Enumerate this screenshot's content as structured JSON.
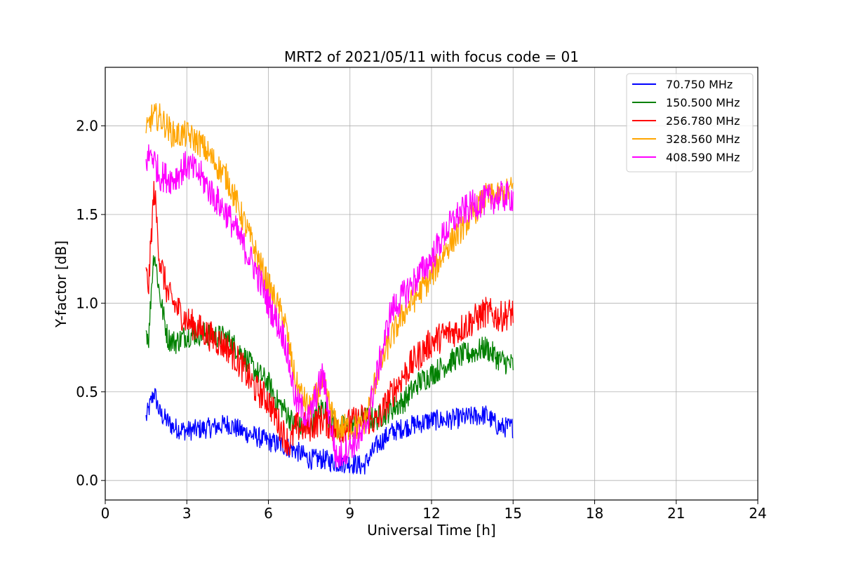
{
  "chart_data": {
    "type": "line",
    "title": "MRT2 of 2021/05/11 with focus code = 01",
    "xlabel": "Universal Time [h]",
    "ylabel": "Y-factor [dB]",
    "xlim": [
      0,
      24
    ],
    "ylim": [
      -0.11,
      2.33
    ],
    "xticks": [
      0,
      3,
      6,
      9,
      12,
      15,
      18,
      21,
      24
    ],
    "xtick_labels": [
      "0",
      "3",
      "6",
      "9",
      "12",
      "15",
      "18",
      "21",
      "24"
    ],
    "yticks": [
      0.0,
      0.5,
      1.0,
      1.5,
      2.0
    ],
    "ytick_labels": [
      "0.0",
      "0.5",
      "1.0",
      "1.5",
      "2.0"
    ],
    "grid": true,
    "legend_position": "top-right",
    "series": [
      {
        "name": " 70.750 MHz",
        "color": "#0000ff",
        "x": [
          1.5,
          1.7,
          1.8,
          2.0,
          2.5,
          3.0,
          3.5,
          4.0,
          4.5,
          5.0,
          5.5,
          6.0,
          6.5,
          7.0,
          7.5,
          8.0,
          8.5,
          9.0,
          9.5,
          10.0,
          10.5,
          11.0,
          11.5,
          12.0,
          12.5,
          13.0,
          13.5,
          14.0,
          14.5,
          15.0
        ],
        "values": [
          0.35,
          0.45,
          0.5,
          0.38,
          0.3,
          0.28,
          0.29,
          0.3,
          0.32,
          0.28,
          0.25,
          0.22,
          0.2,
          0.17,
          0.12,
          0.12,
          0.1,
          0.1,
          0.08,
          0.2,
          0.27,
          0.3,
          0.32,
          0.34,
          0.34,
          0.35,
          0.36,
          0.37,
          0.3,
          0.3
        ],
        "noise": 0.06
      },
      {
        "name": "150.500 MHz",
        "color": "#008000",
        "x": [
          1.5,
          1.6,
          1.7,
          1.8,
          2.0,
          2.3,
          2.6,
          3.0,
          3.5,
          4.0,
          4.5,
          5.0,
          5.5,
          6.0,
          6.3,
          6.6,
          7.0,
          7.5,
          8.0,
          8.5,
          9.0,
          9.5,
          10.0,
          10.5,
          11.0,
          11.5,
          12.0,
          12.5,
          13.0,
          13.5,
          14.0,
          14.5,
          15.0
        ],
        "values": [
          0.85,
          0.8,
          1.1,
          1.3,
          1.05,
          0.8,
          0.78,
          0.82,
          0.83,
          0.82,
          0.8,
          0.72,
          0.62,
          0.55,
          0.45,
          0.4,
          0.3,
          0.3,
          0.42,
          0.3,
          0.3,
          0.35,
          0.35,
          0.4,
          0.45,
          0.55,
          0.6,
          0.65,
          0.7,
          0.72,
          0.75,
          0.68,
          0.65
        ],
        "noise": 0.07
      },
      {
        "name": "256.780 MHz",
        "color": "#ff0000",
        "x": [
          1.5,
          1.6,
          1.7,
          1.8,
          2.0,
          2.3,
          2.6,
          3.0,
          3.5,
          4.0,
          4.5,
          5.0,
          5.5,
          6.0,
          6.3,
          6.6,
          6.8,
          7.0,
          7.5,
          8.0,
          8.5,
          9.0,
          9.5,
          10.0,
          10.5,
          11.0,
          11.5,
          12.0,
          12.5,
          13.0,
          13.5,
          14.0,
          14.5,
          15.0
        ],
        "values": [
          1.15,
          1.1,
          1.4,
          1.65,
          1.25,
          1.05,
          0.98,
          0.9,
          0.85,
          0.8,
          0.75,
          0.65,
          0.52,
          0.45,
          0.35,
          0.25,
          0.2,
          0.3,
          0.3,
          0.35,
          0.28,
          0.32,
          0.35,
          0.33,
          0.48,
          0.6,
          0.7,
          0.78,
          0.82,
          0.85,
          0.9,
          0.95,
          0.92,
          0.95
        ],
        "noise": 0.09
      },
      {
        "name": "328.560 MHz",
        "color": "#ffa500",
        "x": [
          1.5,
          1.7,
          2.0,
          2.5,
          3.0,
          3.5,
          4.0,
          4.5,
          5.0,
          5.5,
          6.0,
          6.3,
          6.6,
          7.0,
          7.5,
          8.0,
          8.5,
          9.0,
          9.5,
          10.0,
          10.5,
          11.0,
          11.5,
          12.0,
          12.5,
          13.0,
          13.5,
          14.0,
          14.5,
          15.0
        ],
        "values": [
          1.95,
          2.05,
          2.05,
          1.95,
          1.95,
          1.9,
          1.8,
          1.7,
          1.5,
          1.3,
          1.1,
          1.0,
          0.9,
          0.55,
          0.4,
          0.55,
          0.3,
          0.3,
          0.3,
          0.6,
          0.8,
          0.95,
          1.05,
          1.15,
          1.3,
          1.4,
          1.5,
          1.6,
          1.6,
          1.65
        ],
        "noise": 0.08
      },
      {
        "name": "408.590 MHz",
        "color": "#ff00ff",
        "x": [
          1.5,
          1.7,
          2.0,
          2.5,
          3.0,
          3.5,
          4.0,
          4.5,
          5.0,
          5.5,
          6.0,
          6.3,
          6.6,
          7.0,
          7.5,
          8.0,
          8.5,
          9.0,
          9.5,
          10.0,
          10.5,
          11.0,
          11.5,
          12.0,
          12.5,
          13.0,
          13.5,
          14.0,
          14.5,
          15.0
        ],
        "values": [
          1.8,
          1.85,
          1.72,
          1.7,
          1.78,
          1.72,
          1.6,
          1.5,
          1.35,
          1.2,
          1.0,
          0.9,
          0.8,
          0.45,
          0.35,
          0.6,
          0.12,
          0.2,
          0.25,
          0.6,
          0.95,
          1.05,
          1.15,
          1.25,
          1.4,
          1.5,
          1.55,
          1.58,
          1.6,
          1.6
        ],
        "noise": 0.09
      }
    ]
  }
}
